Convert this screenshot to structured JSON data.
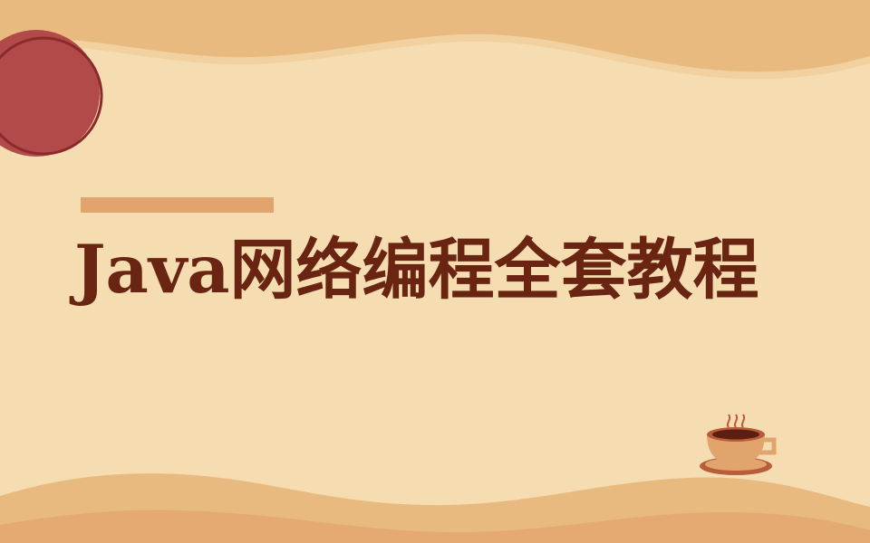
{
  "title": "Java网络编程全套教程",
  "colors": {
    "background": "#f5ddb1",
    "wave": "#e9ba7f",
    "accent_bar": "#e2a46d",
    "title": "#6a2412",
    "circle": "#b34a4a"
  },
  "decorations": [
    "red-circle",
    "accent-bar",
    "top-wave",
    "bottom-wave",
    "coffee-cup-icon"
  ]
}
